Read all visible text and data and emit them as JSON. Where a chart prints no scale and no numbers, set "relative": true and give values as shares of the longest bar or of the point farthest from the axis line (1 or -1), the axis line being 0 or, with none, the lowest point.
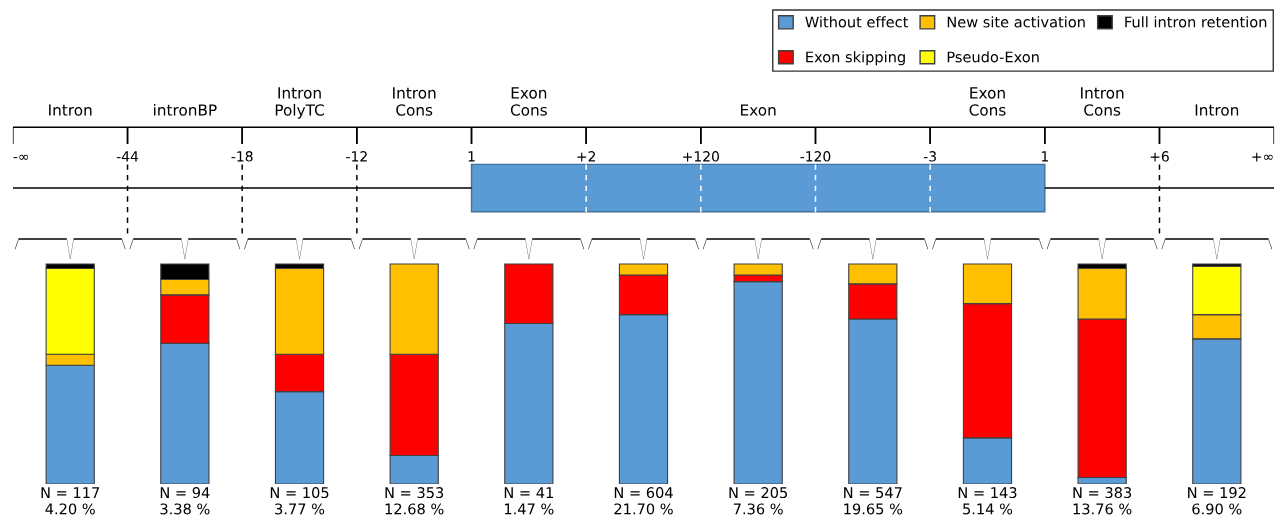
{
  "chart_data": {
    "type": "bar",
    "stacked": true,
    "relative": true,
    "legend": "top right",
    "grid": false,
    "categories": [
      "N = 117\n4.20 %",
      "N = 94\n3.38 %",
      "N = 105\n3.77 %",
      "N = 353\n12.68 %",
      "N = 41\n1.47 %",
      "N = 604\n21.70 %",
      "N = 205\n7.36 %",
      "N = 547\n19.65 %",
      "N = 143\n5.14 %",
      "N = 383\n13.76 %",
      "N = 192\n6.90 %"
    ],
    "series": [
      {
        "name": "Without effect",
        "color": "#5b9bd5",
        "values": [
          0.54,
          0.64,
          0.42,
          0.13,
          0.73,
          0.77,
          0.92,
          0.75,
          0.21,
          0.03,
          0.66
        ]
      },
      {
        "name": "Exon skipping",
        "color": "#ff0000",
        "values": [
          null,
          0.22,
          0.17,
          0.46,
          0.27,
          0.18,
          0.03,
          0.16,
          0.61,
          0.72,
          null
        ]
      },
      {
        "name": "New site activation",
        "color": "#ffc000",
        "values": [
          0.05,
          0.07,
          0.39,
          0.41,
          null,
          0.05,
          0.05,
          0.09,
          0.18,
          0.23,
          0.11
        ]
      },
      {
        "name": "Pseudo-Exon",
        "color": "#ffff00",
        "values": [
          0.39,
          null,
          null,
          null,
          null,
          null,
          null,
          null,
          null,
          null,
          0.22
        ]
      },
      {
        "name": "Full intron retention",
        "color": "#000000",
        "values": [
          0.02,
          0.07,
          0.02,
          null,
          null,
          null,
          null,
          null,
          null,
          0.02,
          0.01
        ]
      }
    ],
    "annotations": [
      "-∞",
      "-44",
      "-18",
      "-12",
      "1",
      "+2",
      "+120",
      "-120",
      "-3",
      "1",
      "+6",
      "+∞",
      "Intron",
      "intronBP",
      "Intron\nPolyTC",
      "Intron\nCons",
      "Exon\nCons",
      "Exon",
      "Exon\nCons",
      "Intron\nCons",
      "Intron"
    ]
  }
}
